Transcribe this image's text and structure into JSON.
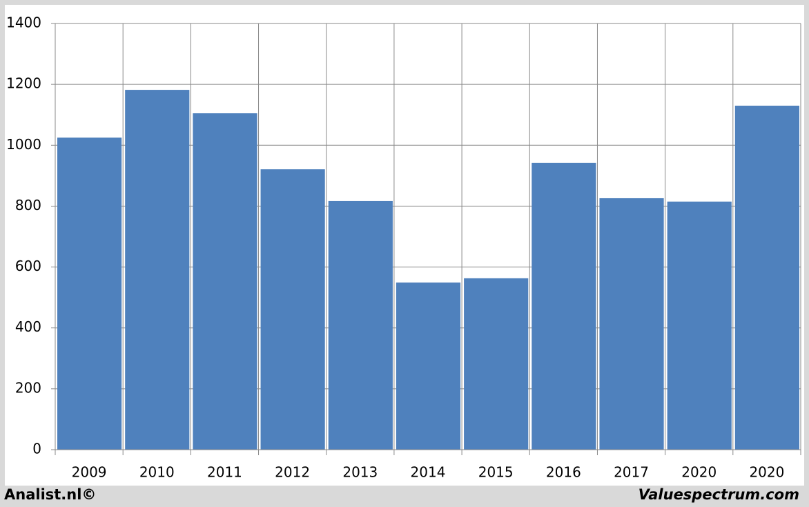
{
  "chart_data": {
    "type": "bar",
    "categories": [
      "2009",
      "2010",
      "2011",
      "2012",
      "2013",
      "2014",
      "2015",
      "2016",
      "2017",
      "2020",
      "2020"
    ],
    "values": [
      1025,
      1182,
      1105,
      921,
      817,
      549,
      563,
      942,
      826,
      815,
      1130
    ],
    "color": "#4f81bd",
    "ylim": [
      0,
      1400
    ],
    "yticks": [
      0,
      200,
      400,
      600,
      800,
      1000,
      1200,
      1400
    ],
    "grid": true
  },
  "footer": {
    "left": "Analist.nl©",
    "right": "Valuespectrum.com"
  }
}
